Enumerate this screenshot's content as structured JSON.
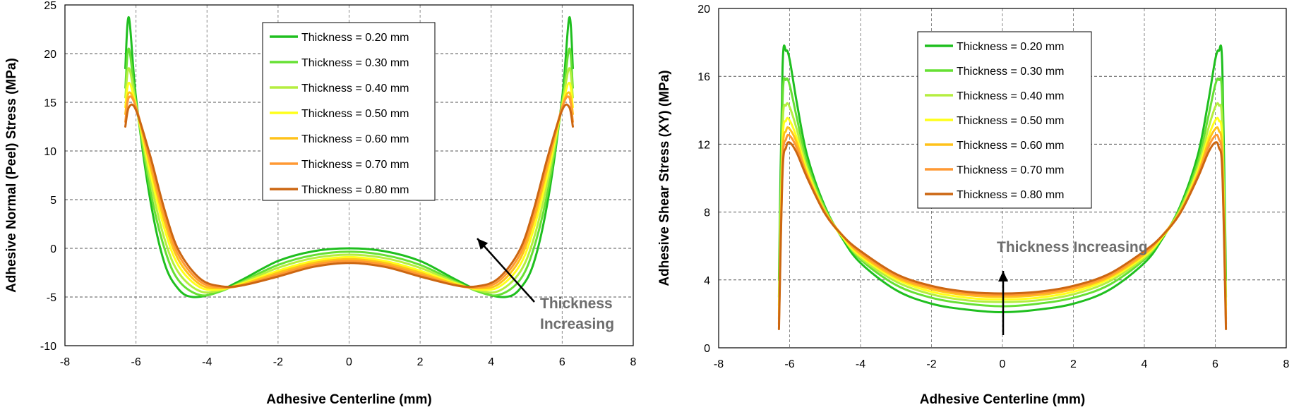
{
  "chart_data": [
    {
      "type": "line",
      "title": "",
      "xlabel": "Adhesive Centerline  (mm)",
      "ylabel": "Adhesive Normal (Peel) Stress  (MPa)",
      "xlim": [
        -8,
        8
      ],
      "ylim": [
        -10,
        25
      ],
      "xticks": [
        -8,
        -6,
        -4,
        -2,
        0,
        2,
        4,
        6,
        8
      ],
      "yticks": [
        -10,
        -5,
        0,
        5,
        10,
        15,
        20,
        25
      ],
      "grid": "dashed",
      "legend_position": "top-center",
      "annotation": {
        "line1": "Thickness",
        "line2": "Increasing"
      },
      "series": [
        {
          "name": "Thickness = 0.20 mm",
          "color": "#1fbf1f",
          "x": [
            -6.3,
            -6.2,
            -6.0,
            -5.6,
            -5.2,
            -4.8,
            -4.4,
            -3.8,
            -3.0,
            -2.0,
            -1.0,
            0,
            1.0,
            2.0,
            3.0,
            3.8,
            4.4,
            4.8,
            5.2,
            5.6,
            6.0,
            6.2,
            6.3
          ],
          "y": [
            18.5,
            23.7,
            15.5,
            5.0,
            -1.5,
            -4.2,
            -5.0,
            -4.6,
            -3.2,
            -1.3,
            -0.3,
            0.0,
            -0.3,
            -1.3,
            -3.2,
            -4.6,
            -5.0,
            -4.2,
            -1.5,
            5.0,
            15.5,
            23.7,
            18.5
          ]
        },
        {
          "name": "Thickness = 0.30 mm",
          "color": "#66e033",
          "x": [
            -6.3,
            -6.2,
            -6.0,
            -5.6,
            -5.2,
            -4.8,
            -4.2,
            -3.6,
            -3.0,
            -2.0,
            -1.0,
            0,
            1.0,
            2.0,
            3.0,
            3.6,
            4.2,
            4.8,
            5.2,
            5.6,
            6.0,
            6.2,
            6.3
          ],
          "y": [
            16.5,
            20.5,
            15.0,
            6.0,
            0.0,
            -3.3,
            -4.8,
            -4.4,
            -3.4,
            -1.7,
            -0.7,
            -0.35,
            -0.7,
            -1.7,
            -3.4,
            -4.4,
            -4.8,
            -3.3,
            0.0,
            6.0,
            15.0,
            20.5,
            16.5
          ]
        },
        {
          "name": "Thickness = 0.40 mm",
          "color": "#b5ee40",
          "x": [
            -6.3,
            -6.2,
            -6.0,
            -5.6,
            -5.2,
            -4.8,
            -4.2,
            -3.6,
            -3.0,
            -2.0,
            -1.0,
            0,
            1.0,
            2.0,
            3.0,
            3.6,
            4.2,
            4.8,
            5.2,
            5.6,
            6.0,
            6.2,
            6.3
          ],
          "y": [
            15.5,
            18.5,
            14.8,
            7.0,
            1.0,
            -2.5,
            -4.4,
            -4.3,
            -3.5,
            -2.0,
            -1.0,
            -0.65,
            -1.0,
            -2.0,
            -3.5,
            -4.3,
            -4.4,
            -2.5,
            1.0,
            7.0,
            14.8,
            18.5,
            15.5
          ]
        },
        {
          "name": "Thickness = 0.50 mm",
          "color": "#ffff1a",
          "x": [
            -6.3,
            -6.2,
            -6.0,
            -5.6,
            -5.2,
            -4.8,
            -4.2,
            -3.6,
            -3.0,
            -2.0,
            -1.0,
            0,
            1.0,
            2.0,
            3.0,
            3.6,
            4.2,
            4.8,
            5.2,
            5.6,
            6.0,
            6.2,
            6.3
          ],
          "y": [
            14.5,
            17.0,
            14.6,
            7.8,
            2.0,
            -1.8,
            -4.0,
            -4.2,
            -3.6,
            -2.3,
            -1.3,
            -0.9,
            -1.3,
            -2.3,
            -3.6,
            -4.2,
            -4.0,
            -1.8,
            2.0,
            7.8,
            14.6,
            17.0,
            14.5
          ]
        },
        {
          "name": "Thickness = 0.60 mm",
          "color": "#ffc21a",
          "x": [
            -6.3,
            -6.2,
            -6.0,
            -5.6,
            -5.2,
            -4.8,
            -4.2,
            -3.6,
            -3.0,
            -2.0,
            -1.0,
            0,
            1.0,
            2.0,
            3.0,
            3.6,
            4.2,
            4.8,
            5.2,
            5.6,
            6.0,
            6.2,
            6.3
          ],
          "y": [
            13.8,
            16.0,
            14.5,
            8.5,
            2.8,
            -1.2,
            -3.7,
            -4.1,
            -3.7,
            -2.5,
            -1.5,
            -1.1,
            -1.5,
            -2.5,
            -3.7,
            -4.1,
            -3.7,
            -1.2,
            2.8,
            8.5,
            14.5,
            16.0,
            13.8
          ]
        },
        {
          "name": "Thickness = 0.70 mm",
          "color": "#ff9933",
          "x": [
            -6.3,
            -6.2,
            -6.0,
            -5.6,
            -5.2,
            -4.8,
            -4.2,
            -3.6,
            -3.0,
            -2.0,
            -1.0,
            0,
            1.0,
            2.0,
            3.0,
            3.6,
            4.2,
            4.8,
            5.2,
            5.6,
            6.0,
            6.2,
            6.3
          ],
          "y": [
            13.0,
            15.5,
            14.5,
            9.0,
            3.4,
            -0.7,
            -3.4,
            -4.0,
            -3.8,
            -2.7,
            -1.7,
            -1.3,
            -1.7,
            -2.7,
            -3.8,
            -4.0,
            -3.4,
            -0.7,
            3.4,
            9.0,
            14.5,
            15.5,
            13.0
          ]
        },
        {
          "name": "Thickness = 0.80 mm",
          "color": "#cc6611",
          "x": [
            -6.3,
            -6.2,
            -6.0,
            -5.6,
            -5.2,
            -4.8,
            -4.2,
            -3.6,
            -3.0,
            -2.0,
            -1.0,
            0,
            1.0,
            2.0,
            3.0,
            3.6,
            4.2,
            4.8,
            5.2,
            5.6,
            6.0,
            6.2,
            6.3
          ],
          "y": [
            12.5,
            14.5,
            14.2,
            9.5,
            4.0,
            -0.2,
            -3.1,
            -3.9,
            -3.8,
            -2.9,
            -1.9,
            -1.5,
            -1.9,
            -2.9,
            -3.8,
            -3.9,
            -3.1,
            -0.2,
            4.0,
            9.5,
            14.2,
            14.5,
            12.5
          ]
        }
      ]
    },
    {
      "type": "line",
      "title": "",
      "xlabel": "Adhesive Centerline  (mm)",
      "ylabel": "Adhesive Shear Stress (XY)  (MPa)",
      "xlim": [
        -8,
        8
      ],
      "ylim": [
        0,
        20
      ],
      "xticks": [
        -8,
        -6,
        -4,
        -2,
        0,
        2,
        4,
        6,
        8
      ],
      "yticks": [
        0,
        4,
        8,
        12,
        16,
        20
      ],
      "grid": "dashed",
      "legend_position": "top-center",
      "annotation": {
        "line1": "Thickness Increasing"
      },
      "series": [
        {
          "name": "Thickness = 0.20 mm",
          "color": "#1fbf1f",
          "x": [
            -6.3,
            -6.2,
            -6.1,
            -6.0,
            -5.8,
            -5.5,
            -5.0,
            -4.5,
            -4.0,
            -3.0,
            -2.0,
            -1.0,
            0,
            1.0,
            2.0,
            3.0,
            4.0,
            4.5,
            5.0,
            5.5,
            5.8,
            6.0,
            6.1,
            6.2,
            6.3
          ],
          "y": [
            4.0,
            16.5,
            17.5,
            17.0,
            14.5,
            11.3,
            8.3,
            6.4,
            5.0,
            3.4,
            2.6,
            2.25,
            2.1,
            2.25,
            2.6,
            3.4,
            5.0,
            6.4,
            8.3,
            11.3,
            14.5,
            17.0,
            17.5,
            16.5,
            4.0
          ]
        },
        {
          "name": "Thickness = 0.30 mm",
          "color": "#66e033",
          "x": [
            -6.3,
            -6.2,
            -6.1,
            -6.0,
            -5.8,
            -5.5,
            -5.0,
            -4.5,
            -4.0,
            -3.0,
            -2.0,
            -1.0,
            0,
            1.0,
            2.0,
            3.0,
            4.0,
            4.5,
            5.0,
            5.5,
            5.8,
            6.0,
            6.1,
            6.2,
            6.3
          ],
          "y": [
            3.0,
            14.5,
            15.8,
            15.5,
            13.6,
            10.9,
            8.2,
            6.5,
            5.2,
            3.7,
            2.95,
            2.6,
            2.45,
            2.6,
            2.95,
            3.7,
            5.2,
            6.5,
            8.2,
            10.9,
            13.6,
            15.5,
            15.8,
            14.5,
            3.0
          ]
        },
        {
          "name": "Thickness = 0.40 mm",
          "color": "#b5ee40",
          "x": [
            -6.3,
            -6.2,
            -6.1,
            -6.0,
            -5.8,
            -5.5,
            -5.0,
            -4.5,
            -4.0,
            -3.0,
            -2.0,
            -1.0,
            0,
            1.0,
            2.0,
            3.0,
            4.0,
            4.5,
            5.0,
            5.5,
            5.8,
            6.0,
            6.1,
            6.2,
            6.3
          ],
          "y": [
            2.5,
            13.0,
            14.3,
            14.2,
            12.9,
            10.6,
            8.1,
            6.5,
            5.3,
            3.9,
            3.15,
            2.8,
            2.7,
            2.8,
            3.15,
            3.9,
            5.3,
            6.5,
            8.1,
            10.6,
            12.9,
            14.2,
            14.3,
            13.0,
            2.5
          ]
        },
        {
          "name": "Thickness = 0.50 mm",
          "color": "#ffff1a",
          "x": [
            -6.3,
            -6.2,
            -6.1,
            -6.0,
            -5.8,
            -5.5,
            -5.0,
            -4.5,
            -4.0,
            -3.0,
            -2.0,
            -1.0,
            0,
            1.0,
            2.0,
            3.0,
            4.0,
            4.5,
            5.0,
            5.5,
            5.8,
            6.0,
            6.1,
            6.2,
            6.3
          ],
          "y": [
            2.0,
            12.0,
            13.4,
            13.4,
            12.4,
            10.4,
            8.0,
            6.5,
            5.4,
            4.05,
            3.3,
            2.95,
            2.85,
            2.95,
            3.3,
            4.05,
            5.4,
            6.5,
            8.0,
            10.4,
            12.4,
            13.4,
            13.4,
            12.0,
            2.0
          ]
        },
        {
          "name": "Thickness = 0.60 mm",
          "color": "#ffc21a",
          "x": [
            -6.3,
            -6.2,
            -6.1,
            -6.0,
            -5.8,
            -5.5,
            -5.0,
            -4.5,
            -4.0,
            -3.0,
            -2.0,
            -1.0,
            0,
            1.0,
            2.0,
            3.0,
            4.0,
            4.5,
            5.0,
            5.5,
            5.8,
            6.0,
            6.1,
            6.2,
            6.3
          ],
          "y": [
            1.7,
            11.3,
            12.8,
            12.9,
            12.1,
            10.2,
            8.0,
            6.6,
            5.5,
            4.15,
            3.45,
            3.1,
            3.0,
            3.1,
            3.45,
            4.15,
            5.5,
            6.6,
            8.0,
            10.2,
            12.1,
            12.9,
            12.8,
            11.3,
            1.7
          ]
        },
        {
          "name": "Thickness = 0.70 mm",
          "color": "#ff9933",
          "x": [
            -6.3,
            -6.2,
            -6.1,
            -6.0,
            -5.8,
            -5.5,
            -5.0,
            -4.5,
            -4.0,
            -3.0,
            -2.0,
            -1.0,
            0,
            1.0,
            2.0,
            3.0,
            4.0,
            4.5,
            5.0,
            5.5,
            5.8,
            6.0,
            6.1,
            6.2,
            6.3
          ],
          "y": [
            1.4,
            10.8,
            12.3,
            12.5,
            11.8,
            10.1,
            7.9,
            6.6,
            5.6,
            4.25,
            3.55,
            3.2,
            3.1,
            3.2,
            3.55,
            4.25,
            5.6,
            6.6,
            7.9,
            10.1,
            11.8,
            12.5,
            12.3,
            10.8,
            1.4
          ]
        },
        {
          "name": "Thickness = 0.80 mm",
          "color": "#cc6611",
          "x": [
            -6.3,
            -6.2,
            -6.1,
            -6.0,
            -5.8,
            -5.5,
            -5.0,
            -4.5,
            -4.0,
            -3.0,
            -2.0,
            -1.0,
            0,
            1.0,
            2.0,
            3.0,
            4.0,
            4.5,
            5.0,
            5.5,
            5.8,
            6.0,
            6.1,
            6.2,
            6.3
          ],
          "y": [
            1.1,
            10.3,
            11.8,
            12.1,
            11.5,
            10.0,
            7.9,
            6.6,
            5.7,
            4.35,
            3.65,
            3.3,
            3.2,
            3.3,
            3.65,
            4.35,
            5.7,
            6.6,
            7.9,
            10.0,
            11.5,
            12.1,
            11.8,
            10.3,
            1.1
          ]
        }
      ]
    }
  ]
}
